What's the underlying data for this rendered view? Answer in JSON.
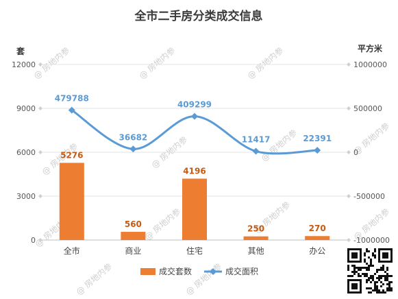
{
  "chart_data": {
    "type": "bar",
    "title": "全市二手房分类成交信息",
    "left_axis_label": "套",
    "right_axis_label": "平方米",
    "left_axis": {
      "min": 0,
      "max": 12000,
      "ticks": [
        0,
        3000,
        6000,
        9000,
        12000
      ]
    },
    "right_axis": {
      "min": -1000000,
      "max": 1000000,
      "ticks": [
        -1000000,
        -500000,
        0,
        500000,
        1000000
      ]
    },
    "categories": [
      "全市",
      "商业",
      "住宅",
      "其他",
      "办公"
    ],
    "series": [
      {
        "name": "成交套数",
        "type": "bar",
        "axis": "left",
        "color": "#ED7D31",
        "values": [
          5276,
          560,
          4196,
          250,
          270
        ]
      },
      {
        "name": "成交面积",
        "type": "line",
        "axis": "right",
        "color": "#5B9BD5",
        "values": [
          479788,
          36682,
          409299,
          11417,
          22391
        ]
      }
    ],
    "grid": true,
    "legend_position": "bottom"
  },
  "watermark_text": "房地内参",
  "colors": {
    "bar": "#ED7D31",
    "line": "#5B9BD5",
    "bar_label": "#C55A11",
    "line_label": "#5B9BD5"
  }
}
